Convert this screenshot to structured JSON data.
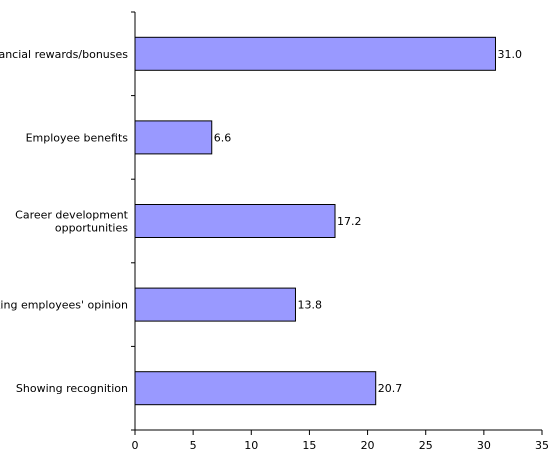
{
  "colors": {
    "bar_fill": "#9999FF",
    "bar_stroke": "#000000",
    "axis": "#000000",
    "background": "#FFFFFF"
  },
  "chart_data": {
    "type": "bar",
    "orientation": "horizontal",
    "categories": [
      "Financial rewards/bonuses",
      "Employee benefits",
      "Career development opportunities",
      "Seeking employees' opinion",
      "Showing recognition"
    ],
    "category_display_lines": [
      [
        "Financial rewards/bonuses"
      ],
      [
        "Employee benefits"
      ],
      [
        "Career development",
        "opportunities"
      ],
      [
        "Seeking employees' opinion"
      ],
      [
        "Showing recognition"
      ]
    ],
    "values": [
      31.0,
      6.6,
      17.2,
      13.8,
      20.7
    ],
    "value_labels": [
      "31.0",
      "6.6",
      "17.2",
      "13.8",
      "20.7"
    ],
    "xlim": [
      0,
      35
    ],
    "x_ticks": [
      0,
      5,
      10,
      15,
      20,
      25,
      30,
      35
    ],
    "x_tick_labels": [
      "0",
      "5",
      "10",
      "15",
      "20",
      "25",
      "30",
      "35"
    ],
    "grid": false,
    "legend": "none"
  }
}
